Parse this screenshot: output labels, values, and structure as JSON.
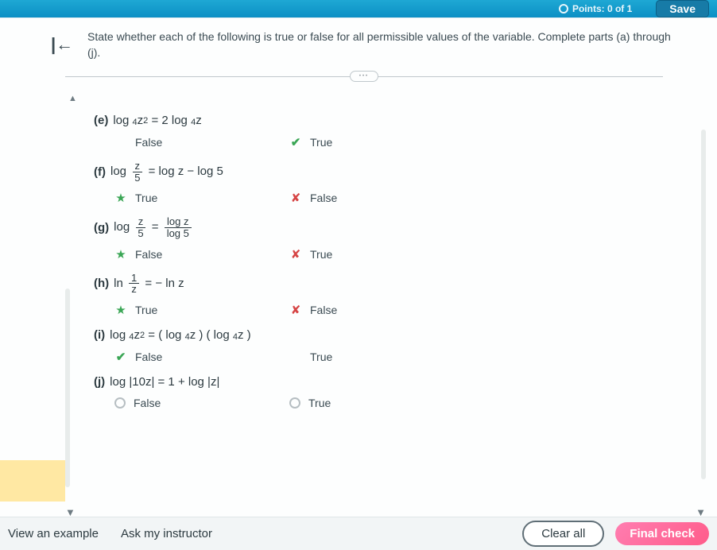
{
  "topbar": {
    "points_label": "Points: 0 of 1",
    "save_label": "Save"
  },
  "prompt": "State whether each of the following is true or false for all permissible values of the variable. Complete parts (a) through (j).",
  "questions": {
    "e": {
      "label": "(e)",
      "opt1": {
        "text": "False",
        "mark": ""
      },
      "opt2": {
        "text": "True",
        "mark": "checkmark"
      }
    },
    "f": {
      "label": "(f)",
      "opt1": {
        "text": "True",
        "mark": "star-correct"
      },
      "opt2": {
        "text": "False",
        "mark": "x-wrong"
      }
    },
    "g": {
      "label": "(g)",
      "opt1": {
        "text": "False",
        "mark": "star-correct"
      },
      "opt2": {
        "text": "True",
        "mark": "x-wrong"
      }
    },
    "h": {
      "label": "(h)",
      "opt1": {
        "text": "True",
        "mark": "star-correct"
      },
      "opt2": {
        "text": "False",
        "mark": "x-wrong"
      }
    },
    "i": {
      "label": "(i)",
      "opt1": {
        "text": "False",
        "mark": "checkmark"
      },
      "opt2": {
        "text": "True",
        "mark": ""
      }
    },
    "j": {
      "label": "(j)",
      "opt1": {
        "text": "False",
        "mark": "radio"
      },
      "opt2": {
        "text": "True",
        "mark": "radio"
      }
    }
  },
  "footer": {
    "view_example": "View an example",
    "ask_instructor": "Ask my instructor",
    "clear_all": "Clear all",
    "final_check": "Final check"
  },
  "colors": {
    "header_bg": "#0c8fc4",
    "correct": "#3aa655",
    "wrong": "#d64545",
    "highlight": "#ffe8a3",
    "final_btn": "#ff5c8a"
  }
}
